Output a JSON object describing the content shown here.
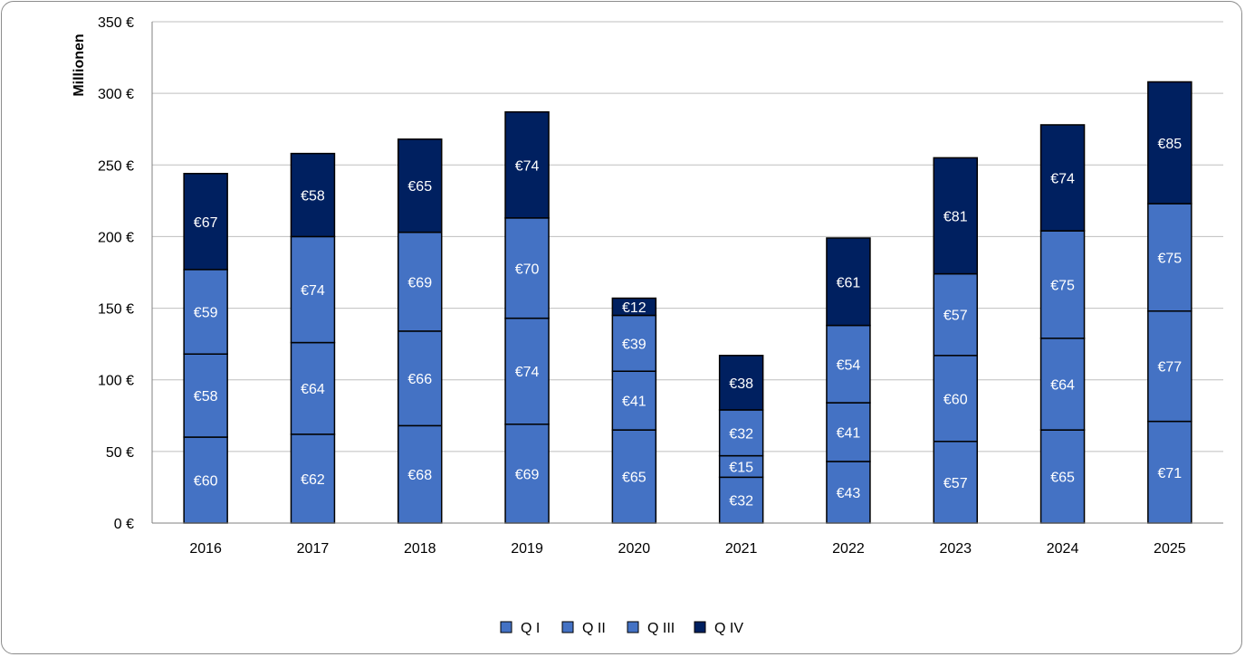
{
  "chart_data": {
    "type": "bar",
    "stacked": true,
    "title": "",
    "xlabel": "",
    "ylabel": "Millionen",
    "ylim": [
      0,
      350
    ],
    "yticks": [
      "0 €",
      "50 €",
      "100 €",
      "150 €",
      "200 €",
      "250 €",
      "300 €",
      "350 €"
    ],
    "ytick_values": [
      0,
      50,
      100,
      150,
      200,
      250,
      300,
      350
    ],
    "grid": true,
    "legend_position": "bottom",
    "categories": [
      "2016",
      "2017",
      "2018",
      "2019",
      "2020",
      "2021",
      "2022",
      "2023",
      "2024",
      "2025"
    ],
    "series": [
      {
        "name": "Q I",
        "color": "#4472c4",
        "values": [
          60,
          62,
          68,
          69,
          65,
          32,
          43,
          57,
          65,
          71
        ],
        "labels": [
          "€60",
          "€62",
          "€68",
          "€69",
          "€65",
          "€32",
          "€43",
          "€57",
          "€65",
          "€71"
        ]
      },
      {
        "name": "Q II",
        "color": "#4472c4",
        "values": [
          58,
          64,
          66,
          74,
          41,
          15,
          41,
          60,
          64,
          77
        ],
        "labels": [
          "€58",
          "€64",
          "€66",
          "€74",
          "€41",
          "€15",
          "€41",
          "€60",
          "€64",
          "€77"
        ]
      },
      {
        "name": "Q III",
        "color": "#4472c4",
        "values": [
          59,
          74,
          69,
          70,
          39,
          32,
          54,
          57,
          75,
          75
        ],
        "labels": [
          "€59",
          "€74",
          "€69",
          "€70",
          "€39",
          "€32",
          "€54",
          "€57",
          "€75",
          "€75"
        ]
      },
      {
        "name": "Q IV",
        "color": "#002060",
        "values": [
          67,
          58,
          65,
          74,
          12,
          38,
          61,
          81,
          74,
          85
        ],
        "labels": [
          "€67",
          "€58",
          "€65",
          "€74",
          "€12",
          "€38",
          "€61",
          "€81",
          "€74",
          "€85"
        ]
      }
    ]
  }
}
